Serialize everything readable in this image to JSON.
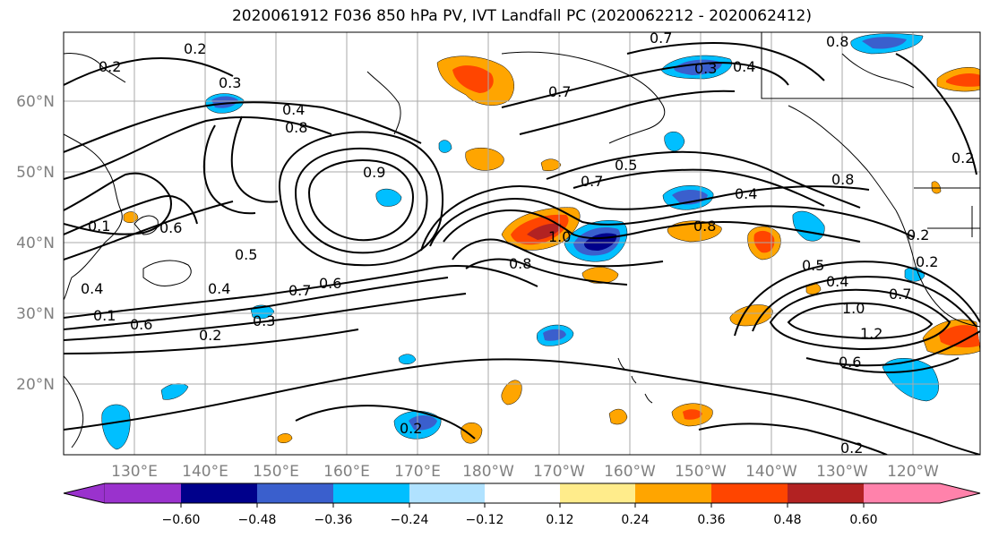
{
  "title": "2020061912 F036 850 hPa PV, IVT Landfall PC (2020062212 - 2020062412)",
  "lat_labels": [
    "60°N",
    "50°N",
    "40°N",
    "30°N",
    "20°N"
  ],
  "lon_labels": [
    "130°E",
    "140°E",
    "150°E",
    "160°E",
    "170°E",
    "180°W",
    "170°W",
    "160°W",
    "150°W",
    "140°W",
    "130°W",
    "120°W"
  ],
  "colorbar": {
    "ticks": [
      "−0.60",
      "−0.48",
      "−0.36",
      "−0.24",
      "−0.12",
      "0.12",
      "0.24",
      "0.36",
      "0.48",
      "0.60"
    ],
    "colors": [
      "#9a32cd",
      "#00008b",
      "#3a5fcd",
      "#00bfff",
      "#b0e2ff",
      "#ffffff",
      "#ffec8b",
      "#ffa500",
      "#ff4500",
      "#b22222",
      "#ff82ab"
    ]
  },
  "contour_labels": [
    "0.2",
    "0.2",
    "0.3",
    "0.4",
    "0.7",
    "0.8",
    "0.3",
    "0.4",
    "0.7",
    "0.8",
    "0.5",
    "0.7",
    "0.4",
    "0.8",
    "0.9",
    "0.5",
    "0.4",
    "0.6",
    "0.7",
    "0.6",
    "0.3",
    "0.2",
    "0.1",
    "0.6",
    "0.4",
    "0.1",
    "0.8",
    "1.0",
    "0.8",
    "0.5",
    "0.4",
    "1.0",
    "1.2",
    "0.7",
    "0.6",
    "0.2",
    "0.2",
    "0.2",
    "0.2",
    "0.2"
  ]
}
